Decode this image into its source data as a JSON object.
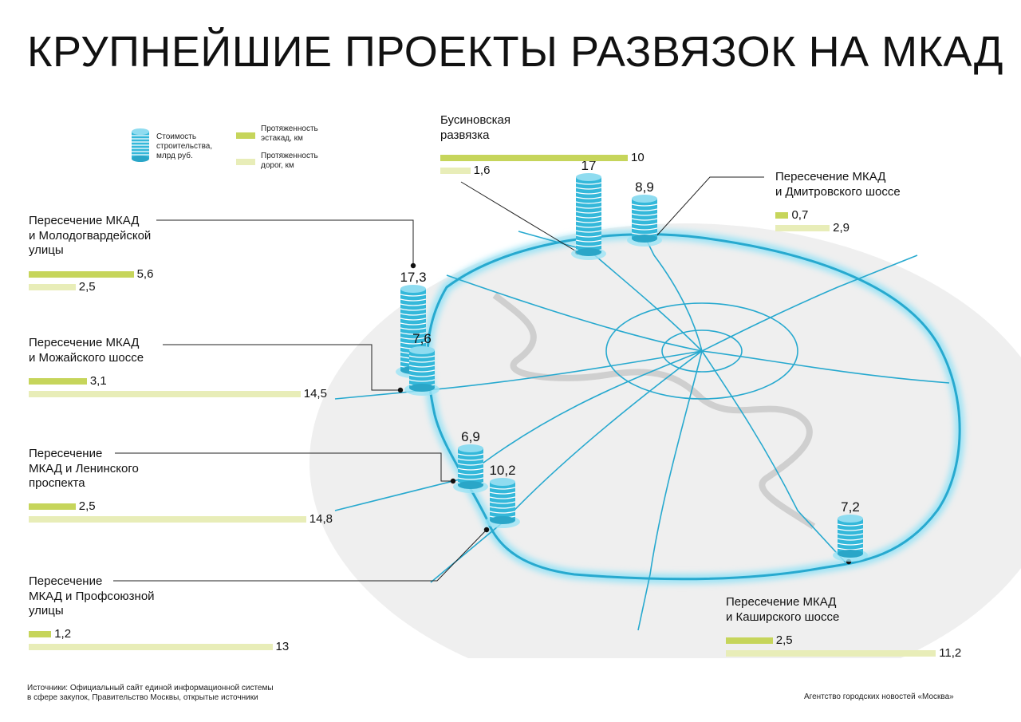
{
  "title": "КРУПНЕЙШИЕ ПРОЕКТЫ РАЗВЯЗОК НА МКАД",
  "legend": {
    "cost": "Стоимость\nстроительства,\nмлрд руб.",
    "flyover": "Протяженность\nэстакад, км",
    "road": "Протяженность\nдорог, км"
  },
  "colors": {
    "flyover": "#c6d55b",
    "road": "#e8edb8",
    "coin": "#34b8da",
    "roads_on_map": "#27a9cf",
    "map_area": "#eeeeee"
  },
  "chart_data": {
    "type": "bar",
    "units": {
      "cost": "млрд руб.",
      "length": "км"
    },
    "series": [
      {
        "name": "Стоимость строительства, млрд руб.",
        "key": "cost"
      },
      {
        "name": "Протяженность эстакад, км",
        "key": "flyover"
      },
      {
        "name": "Протяженность дорог, км",
        "key": "road"
      }
    ],
    "projects": [
      {
        "id": "businovskaya",
        "name": "Бусиновская\nразвязка",
        "cost": "17",
        "flyover": 10,
        "flyover_label": "10",
        "road": 1.6,
        "road_label": "1,6"
      },
      {
        "id": "dmitrovskoe",
        "name": "Пересечение МКАД\nи Дмитровского шоссе",
        "cost": "8,9",
        "flyover": 0.7,
        "flyover_label": "0,7",
        "road": 2.9,
        "road_label": "2,9"
      },
      {
        "id": "molodogvardeyskaya",
        "name": "Пересечение МКАД\nи Молодогвардейской\nулицы",
        "cost": "17,3",
        "flyover": 5.6,
        "flyover_label": "5,6",
        "road": 2.5,
        "road_label": "2,5"
      },
      {
        "id": "mozhayskoe",
        "name": "Пересечение МКАД\nи Можайского шоссе",
        "cost": "7,6",
        "flyover": 3.1,
        "flyover_label": "3,1",
        "road": 14.5,
        "road_label": "14,5"
      },
      {
        "id": "leninsky",
        "name": "Пересечение\nМКАД и Ленинского\nпроспекта",
        "cost": "6,9",
        "flyover": 2.5,
        "flyover_label": "2,5",
        "road": 14.8,
        "road_label": "14,8"
      },
      {
        "id": "profsoyuznaya",
        "name": "Пересечение\nМКАД и Профсоюзной\nулицы",
        "cost": "10,2",
        "flyover": 1.2,
        "flyover_label": "1,2",
        "road": 13,
        "road_label": "13"
      },
      {
        "id": "kashirskoe",
        "name": "Пересечение МКАД\nи Каширского шоссе",
        "cost": "7,2",
        "flyover": 2.5,
        "flyover_label": "2,5",
        "road": 11.2,
        "road_label": "11,2"
      }
    ]
  },
  "footer": {
    "sources": "Источники: Официальный сайт единой информационной системы\nв сфере закупок, Правительство Москвы, открытые источники",
    "agency": "Агентство городских новостей «Москва»"
  }
}
